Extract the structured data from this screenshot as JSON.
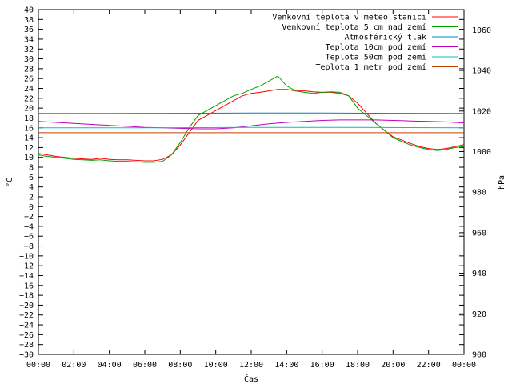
{
  "chart_data": {
    "type": "line",
    "title": "",
    "xlabel": "Čas",
    "ylabel": "°C",
    "y2label": "hPa",
    "grid": false,
    "legend_position": "top-right",
    "x_ticks": [
      "00:00",
      "02:00",
      "04:00",
      "06:00",
      "08:00",
      "10:00",
      "12:00",
      "14:00",
      "16:00",
      "18:00",
      "20:00",
      "22:00",
      "00:00"
    ],
    "x_range_hours": [
      0,
      24
    ],
    "ylim": [
      -30,
      40
    ],
    "y_ticks": [
      40,
      38,
      36,
      34,
      32,
      30,
      28,
      26,
      24,
      22,
      20,
      18,
      16,
      14,
      12,
      10,
      8,
      6,
      4,
      2,
      0,
      -2,
      -4,
      -6,
      -8,
      -10,
      -12,
      -14,
      -16,
      -18,
      -20,
      -22,
      -24,
      -26,
      -28,
      -30
    ],
    "y2lim": [
      900,
      1070
    ],
    "y2_ticks": [
      1060,
      1040,
      1020,
      1000,
      980,
      960,
      940,
      920,
      900
    ],
    "series": [
      {
        "name": "Venkovní teplota v meteo stanici",
        "color": "#ff0000",
        "axis": "left",
        "x": [
          0,
          0.5,
          1,
          1.5,
          2,
          2.5,
          3,
          3.5,
          4,
          4.5,
          5,
          5.5,
          6,
          6.5,
          7,
          7.5,
          8,
          8.5,
          9,
          9.5,
          10,
          10.5,
          11,
          11.5,
          12,
          12.5,
          13,
          13.5,
          14,
          14.5,
          15,
          15.5,
          16,
          16.5,
          17,
          17.5,
          18,
          18.5,
          19,
          19.5,
          20,
          20.5,
          21,
          21.5,
          22,
          22.5,
          23,
          23.5,
          24
        ],
        "values": [
          10.8,
          10.5,
          10.2,
          10,
          9.8,
          9.7,
          9.6,
          9.8,
          9.6,
          9.5,
          9.5,
          9.4,
          9.3,
          9.3,
          9.6,
          10.5,
          12.5,
          15,
          17.5,
          18.5,
          19.5,
          20.5,
          21.5,
          22.5,
          23,
          23.2,
          23.5,
          23.8,
          23.8,
          23.5,
          23.5,
          23.3,
          23.2,
          23.2,
          23,
          22.5,
          21,
          19,
          17,
          15.5,
          14.2,
          13.5,
          12.8,
          12.2,
          11.8,
          11.6,
          11.8,
          12.2,
          12.6
        ]
      },
      {
        "name": "Venkovní teplota 5 cm nad zemí",
        "color": "#00a000",
        "axis": "left",
        "x": [
          0,
          0.5,
          1,
          1.5,
          2,
          2.5,
          3,
          3.5,
          4,
          4.5,
          5,
          5.5,
          6,
          6.5,
          7,
          7.5,
          8,
          8.5,
          9,
          9.5,
          10,
          10.5,
          11,
          11.5,
          12,
          12.5,
          13,
          13.5,
          14,
          14.5,
          15,
          15.5,
          16,
          16.5,
          17,
          17.5,
          18,
          18.5,
          19,
          19.5,
          20,
          20.5,
          21,
          21.5,
          22,
          22.5,
          23,
          23.5,
          24
        ],
        "values": [
          10.5,
          10.2,
          10,
          9.8,
          9.6,
          9.5,
          9.4,
          9.5,
          9.3,
          9.2,
          9.2,
          9.1,
          9,
          9,
          9.2,
          10.5,
          13,
          16,
          18.5,
          19.5,
          20.5,
          21.5,
          22.5,
          23,
          23.8,
          24.5,
          25.5,
          26.5,
          24.5,
          23.5,
          23.2,
          23,
          23.2,
          23.3,
          23.2,
          22.5,
          20,
          18.5,
          17,
          15.5,
          14,
          13.2,
          12.5,
          12,
          11.6,
          11.4,
          11.6,
          12,
          12.2
        ]
      },
      {
        "name": "Atmosférický tlak",
        "color": "#0080c0",
        "axis": "right",
        "x": [
          0,
          4,
          8,
          12,
          16,
          20,
          24
        ],
        "values": [
          1018.8,
          1018.8,
          1018.9,
          1019.0,
          1019.0,
          1018.9,
          1018.8
        ]
      },
      {
        "name": "Teplota 10cm pod zemí",
        "color": "#c000c0",
        "axis": "left",
        "x": [
          0,
          1,
          2,
          3,
          4,
          5,
          6,
          7,
          8,
          9,
          10,
          11,
          12,
          13,
          14,
          15,
          16,
          17,
          18,
          19,
          20,
          21,
          22,
          23,
          24
        ],
        "values": [
          17.3,
          17.1,
          16.9,
          16.7,
          16.5,
          16.3,
          16.1,
          16,
          15.9,
          15.8,
          15.8,
          16,
          16.4,
          16.8,
          17.1,
          17.3,
          17.5,
          17.6,
          17.6,
          17.6,
          17.5,
          17.4,
          17.3,
          17.2,
          17
        ]
      },
      {
        "name": "Teplota 50cm pod zemí",
        "color": "#00c0c0",
        "axis": "left",
        "x": [
          0,
          6,
          12,
          18,
          24
        ],
        "values": [
          16.0,
          16.0,
          16.1,
          16.1,
          16.0
        ]
      },
      {
        "name": "Teplota 1 metr pod zemí",
        "color": "#c04000",
        "axis": "left",
        "x": [
          0,
          24
        ],
        "values": [
          15.0,
          15.0
        ]
      }
    ]
  }
}
